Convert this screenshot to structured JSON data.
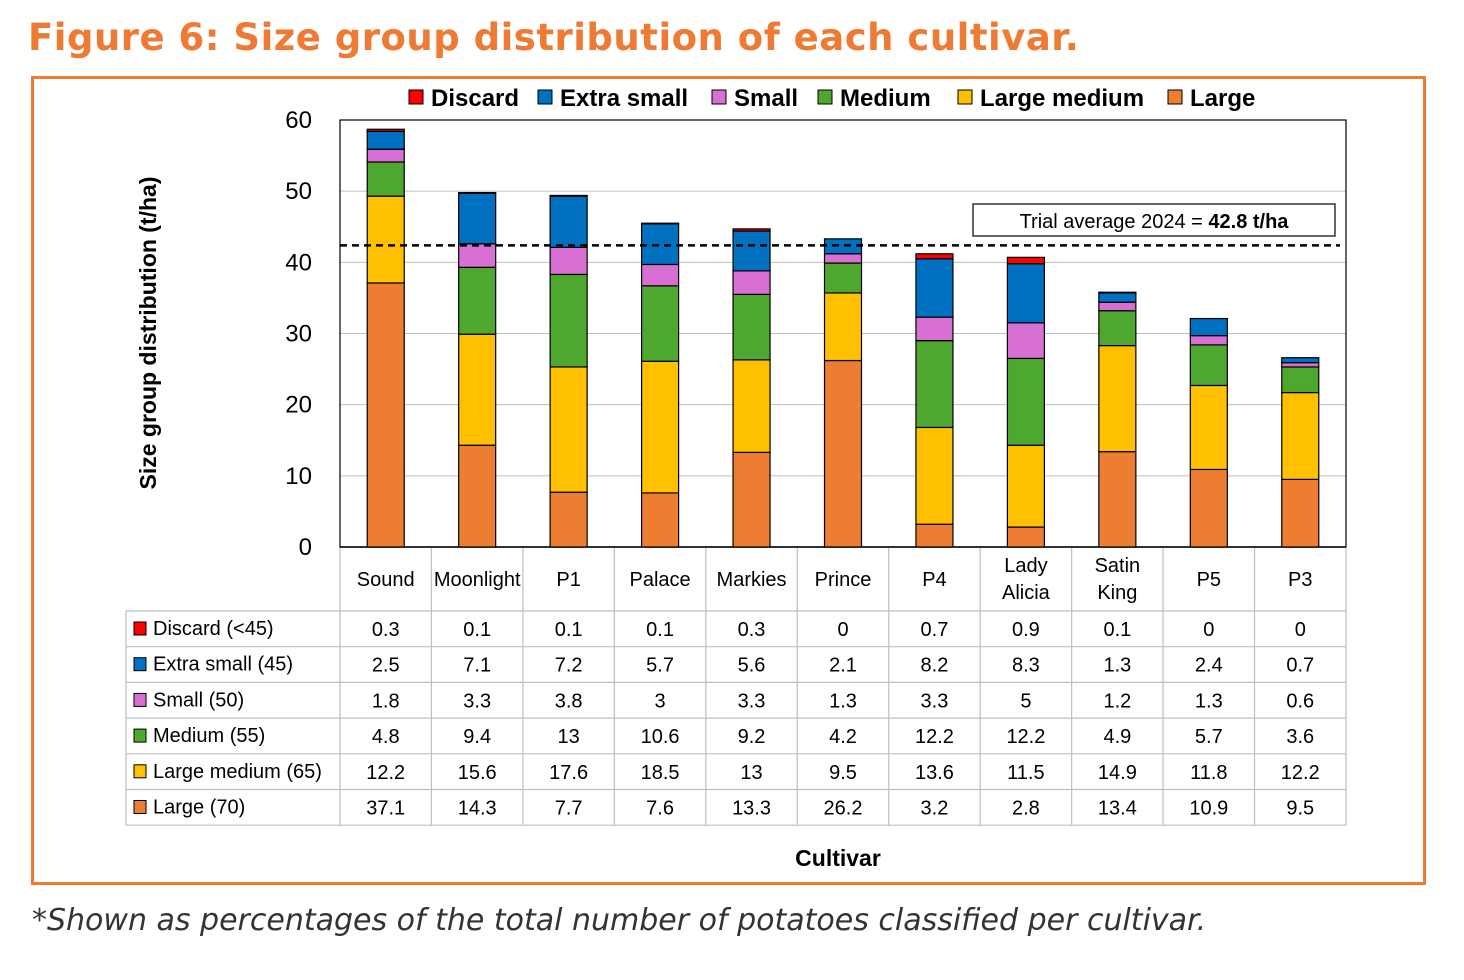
{
  "title": "Figure 6: Size group distribution of each cultivar.",
  "footnote": "*Shown as percentages of the total number of potatoes classified per cultivar.",
  "chart_data": {
    "type": "bar",
    "stacked": true,
    "ylabel": "Size group distribution (t/ha)",
    "xlabel": "Cultivar",
    "ylim": [
      0,
      60
    ],
    "yticks": [
      0,
      10,
      20,
      30,
      40,
      50,
      60
    ],
    "grid": true,
    "legend_placement": "top",
    "categories": [
      "Sound",
      "Moonlight",
      "P1",
      "Palace",
      "Markies",
      "Prince",
      "P4",
      "Lady Alicia",
      "Satin King",
      "P5",
      "P3"
    ],
    "series": [
      {
        "name": "Large",
        "table_label": "Large (70)",
        "color": "#ED7D31",
        "values": [
          37.1,
          14.3,
          7.7,
          7.6,
          13.3,
          26.2,
          3.2,
          2.8,
          13.4,
          10.9,
          9.5
        ]
      },
      {
        "name": "Large medium",
        "table_label": "Large medium (65)",
        "color": "#FFC000",
        "values": [
          12.2,
          15.6,
          17.6,
          18.5,
          13,
          9.5,
          13.6,
          11.5,
          14.9,
          11.8,
          12.2
        ]
      },
      {
        "name": "Medium",
        "table_label": "Medium (55)",
        "color": "#4EA72E",
        "values": [
          4.8,
          9.4,
          13,
          10.6,
          9.2,
          4.2,
          12.2,
          12.2,
          4.9,
          5.7,
          3.6
        ]
      },
      {
        "name": "Small",
        "table_label": "Small (50)",
        "color": "#D86FD3",
        "values": [
          1.8,
          3.3,
          3.8,
          3,
          3.3,
          1.3,
          3.3,
          5,
          1.2,
          1.3,
          0.6
        ]
      },
      {
        "name": "Extra small",
        "table_label": "Extra small (45)",
        "color": "#0070C0",
        "values": [
          2.5,
          7.1,
          7.2,
          5.7,
          5.6,
          2.1,
          8.2,
          8.3,
          1.3,
          2.4,
          0.7
        ]
      },
      {
        "name": "Discard",
        "table_label": "Discard (<45)",
        "color": "#FF0000",
        "values": [
          0.3,
          0.1,
          0.1,
          0.1,
          0.3,
          0,
          0.7,
          0.9,
          0.1,
          0,
          0
        ]
      }
    ],
    "legend_order": [
      "Discard",
      "Extra small",
      "Small",
      "Medium",
      "Large medium",
      "Large"
    ],
    "table_order": [
      "Discard",
      "Extra small",
      "Small",
      "Medium",
      "Large medium",
      "Large"
    ],
    "reference_line": {
      "label": "Trial average 2024 = ",
      "value_label": "42.8 t/ha",
      "value": 42.8
    }
  }
}
